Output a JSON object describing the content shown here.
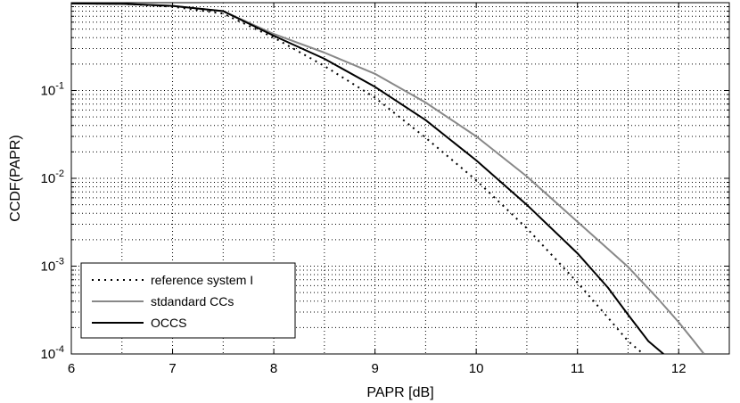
{
  "chart_data": {
    "type": "line",
    "title": "",
    "xlabel": "PAPR [dB]",
    "ylabel": "CCDF(PAPR)",
    "xlim": [
      6,
      12.5
    ],
    "ylim": [
      0.0001,
      1
    ],
    "yscale": "log",
    "grid": true,
    "x_ticks": [
      6,
      7,
      8,
      9,
      10,
      11,
      12
    ],
    "y_ticks": [
      {
        "value": 0.1,
        "base": "10",
        "exp": "-1"
      },
      {
        "value": 0.01,
        "base": "10",
        "exp": "-2"
      },
      {
        "value": 0.001,
        "base": "10",
        "exp": "-3"
      },
      {
        "value": 0.0001,
        "base": "10",
        "exp": "-4"
      }
    ],
    "legend_position": "bottom-left",
    "series": [
      {
        "name": "reference system I",
        "style": "dotted",
        "color": "#000000",
        "x": [
          6.0,
          6.5,
          7.0,
          7.5,
          8.0,
          8.5,
          9.0,
          9.5,
          10.0,
          10.5,
          11.0,
          11.3,
          11.5,
          11.65
        ],
        "y": [
          0.98,
          0.97,
          0.9,
          0.75,
          0.4,
          0.19,
          0.083,
          0.029,
          0.0095,
          0.0027,
          0.00065,
          0.00026,
          0.00014,
          0.0001
        ]
      },
      {
        "name": "stdandard CCs",
        "style": "solid",
        "color": "#888888",
        "x": [
          6.0,
          6.5,
          7.0,
          7.5,
          8.0,
          8.5,
          9.0,
          9.5,
          10.0,
          10.5,
          11.0,
          11.5,
          11.8,
          12.0,
          12.15,
          12.25
        ],
        "y": [
          0.98,
          0.97,
          0.92,
          0.8,
          0.44,
          0.27,
          0.155,
          0.073,
          0.03,
          0.0105,
          0.0032,
          0.00098,
          0.00042,
          0.00023,
          0.00014,
          0.0001
        ]
      },
      {
        "name": "OCCS",
        "style": "solid",
        "color": "#000000",
        "x": [
          6.0,
          6.5,
          7.0,
          7.5,
          8.0,
          8.5,
          9.0,
          9.5,
          10.0,
          10.5,
          11.0,
          11.3,
          11.5,
          11.7,
          11.85
        ],
        "y": [
          0.98,
          0.97,
          0.92,
          0.8,
          0.42,
          0.23,
          0.11,
          0.046,
          0.016,
          0.005,
          0.0014,
          0.00057,
          0.00028,
          0.00014,
          0.0001
        ]
      }
    ]
  }
}
